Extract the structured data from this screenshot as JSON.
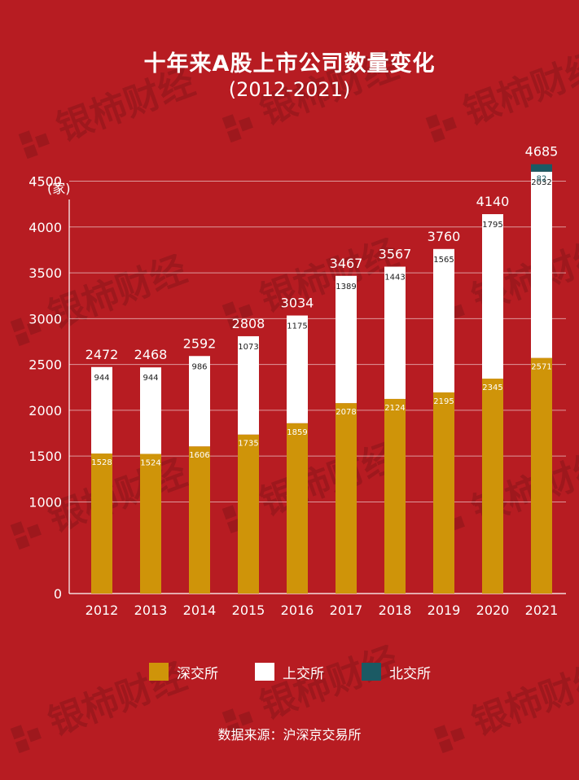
{
  "title": "十年来A股上市公司数量变化",
  "subtitle": "(2012-2021)",
  "watermark": "银柿财经",
  "source": "数据来源：沪深京交易所",
  "colors": {
    "background": "#b71c22",
    "szse": "#cf9409",
    "sse": "#ffffff",
    "bse": "#1b5a64"
  },
  "legend": [
    {
      "label": "深交所",
      "color": "#cf9409"
    },
    {
      "label": "上交所",
      "color": "#ffffff"
    },
    {
      "label": "北交所",
      "color": "#1b5a64"
    }
  ],
  "chart_data": {
    "type": "bar",
    "stacked": true,
    "title": "十年来A股上市公司数量变化",
    "subtitle": "(2012-2021)",
    "ylabel": "(家)",
    "ylim": [
      0,
      4700
    ],
    "yticks": [
      0,
      1000,
      1500,
      2000,
      2500,
      3000,
      3500,
      4000,
      4500
    ],
    "grid": true,
    "legend_position": "bottom",
    "categories": [
      "2012",
      "2013",
      "2014",
      "2015",
      "2016",
      "2017",
      "2018",
      "2019",
      "2020",
      "2021"
    ],
    "totals": [
      2472,
      2468,
      2592,
      2808,
      3034,
      3467,
      3567,
      3760,
      4140,
      4685
    ],
    "series": [
      {
        "name": "深交所",
        "values": [
          1528,
          1524,
          1606,
          1735,
          1859,
          2078,
          2124,
          2195,
          2345,
          2571
        ]
      },
      {
        "name": "上交所",
        "values": [
          944,
          944,
          986,
          1073,
          1175,
          1389,
          1443,
          1565,
          1795,
          2032
        ]
      },
      {
        "name": "北交所",
        "values": [
          0,
          0,
          0,
          0,
          0,
          0,
          0,
          0,
          0,
          82
        ]
      }
    ]
  }
}
